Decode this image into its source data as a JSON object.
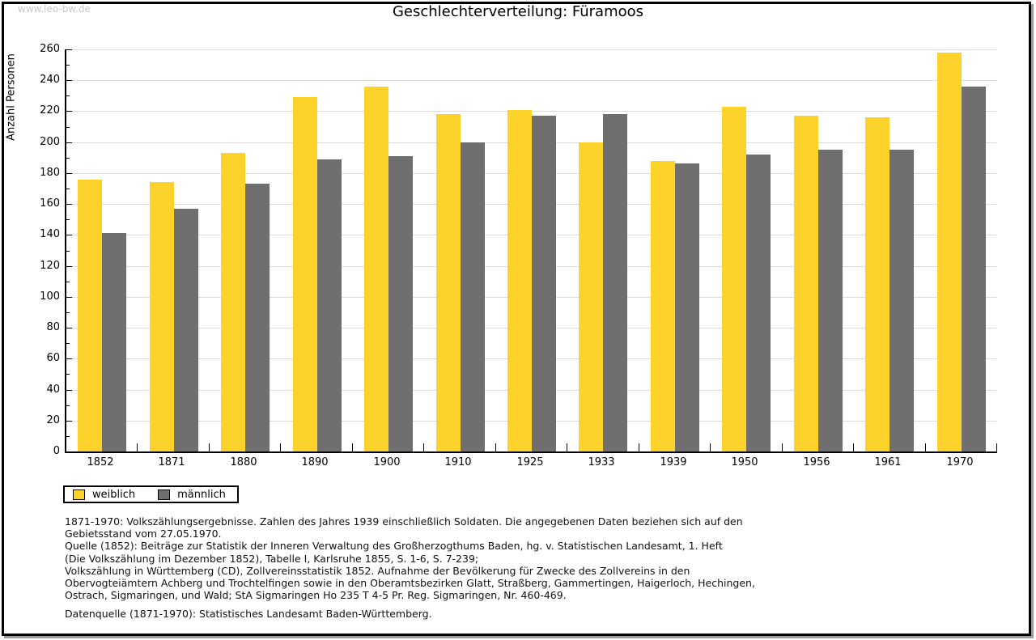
{
  "watermark": "www.leo-bw.de",
  "title": "Geschlechterverteilung: Füramoos",
  "y_axis": {
    "label": "Anzahl Personen",
    "min": 0,
    "max": 260,
    "major_step": 20,
    "minor_step": 10
  },
  "legend": {
    "items": [
      {
        "label": "weiblich",
        "color": "#fcd22b"
      },
      {
        "label": "männlich",
        "color": "#6f6f6f"
      }
    ]
  },
  "chart_data": {
    "type": "bar",
    "title": "Geschlechterverteilung: Füramoos",
    "xlabel": "",
    "ylabel": "Anzahl Personen",
    "ylim": [
      0,
      260
    ],
    "grid": true,
    "legend_position": "bottom-left",
    "categories": [
      "1852",
      "1871",
      "1880",
      "1890",
      "1900",
      "1910",
      "1925",
      "1933",
      "1939",
      "1950",
      "1956",
      "1961",
      "1970"
    ],
    "series": [
      {
        "name": "weiblich",
        "color": "#fcd22b",
        "values": [
          176,
          174,
          193,
          229,
          236,
          218,
          221,
          200,
          188,
          223,
          217,
          216,
          258
        ]
      },
      {
        "name": "männlich",
        "color": "#6f6f6f",
        "values": [
          141,
          157,
          173,
          189,
          191,
          200,
          217,
          218,
          186,
          192,
          195,
          195,
          236
        ]
      }
    ]
  },
  "footnotes": {
    "lines": [
      "1871-1970: Volkszählungsergebnisse. Zahlen des Jahres 1939 einschließlich Soldaten. Die angegebenen Daten beziehen sich auf den",
      "Gebietsstand vom 27.05.1970.",
      "Quelle (1852): Beiträge zur Statistik der Inneren Verwaltung des Großherzogthums Baden, hg. v. Statistischen Landesamt, 1. Heft",
      "(Die Volkszählung im Dezember 1852), Tabelle I, Karlsruhe 1855, S. 1-6, S. 7-239;",
      "Volkszählung in Württemberg (CD), Zollvereinsstatistik 1852. Aufnahme der Bevölkerung für Zwecke des Zollvereins in den",
      "Obervogteiämtern Achberg und Trochtelfingen sowie in den Oberamtsbezirken Glatt, Straßberg, Gammertingen, Haigerloch, Hechingen,",
      "Ostrach, Sigmaringen, und Wald; StA Sigmaringen Ho 235 T 4-5 Pr. Reg. Sigmaringen, Nr. 460-469."
    ],
    "datasource": "Datenquelle (1871-1970): Statistisches Landesamt Baden-Württemberg."
  }
}
